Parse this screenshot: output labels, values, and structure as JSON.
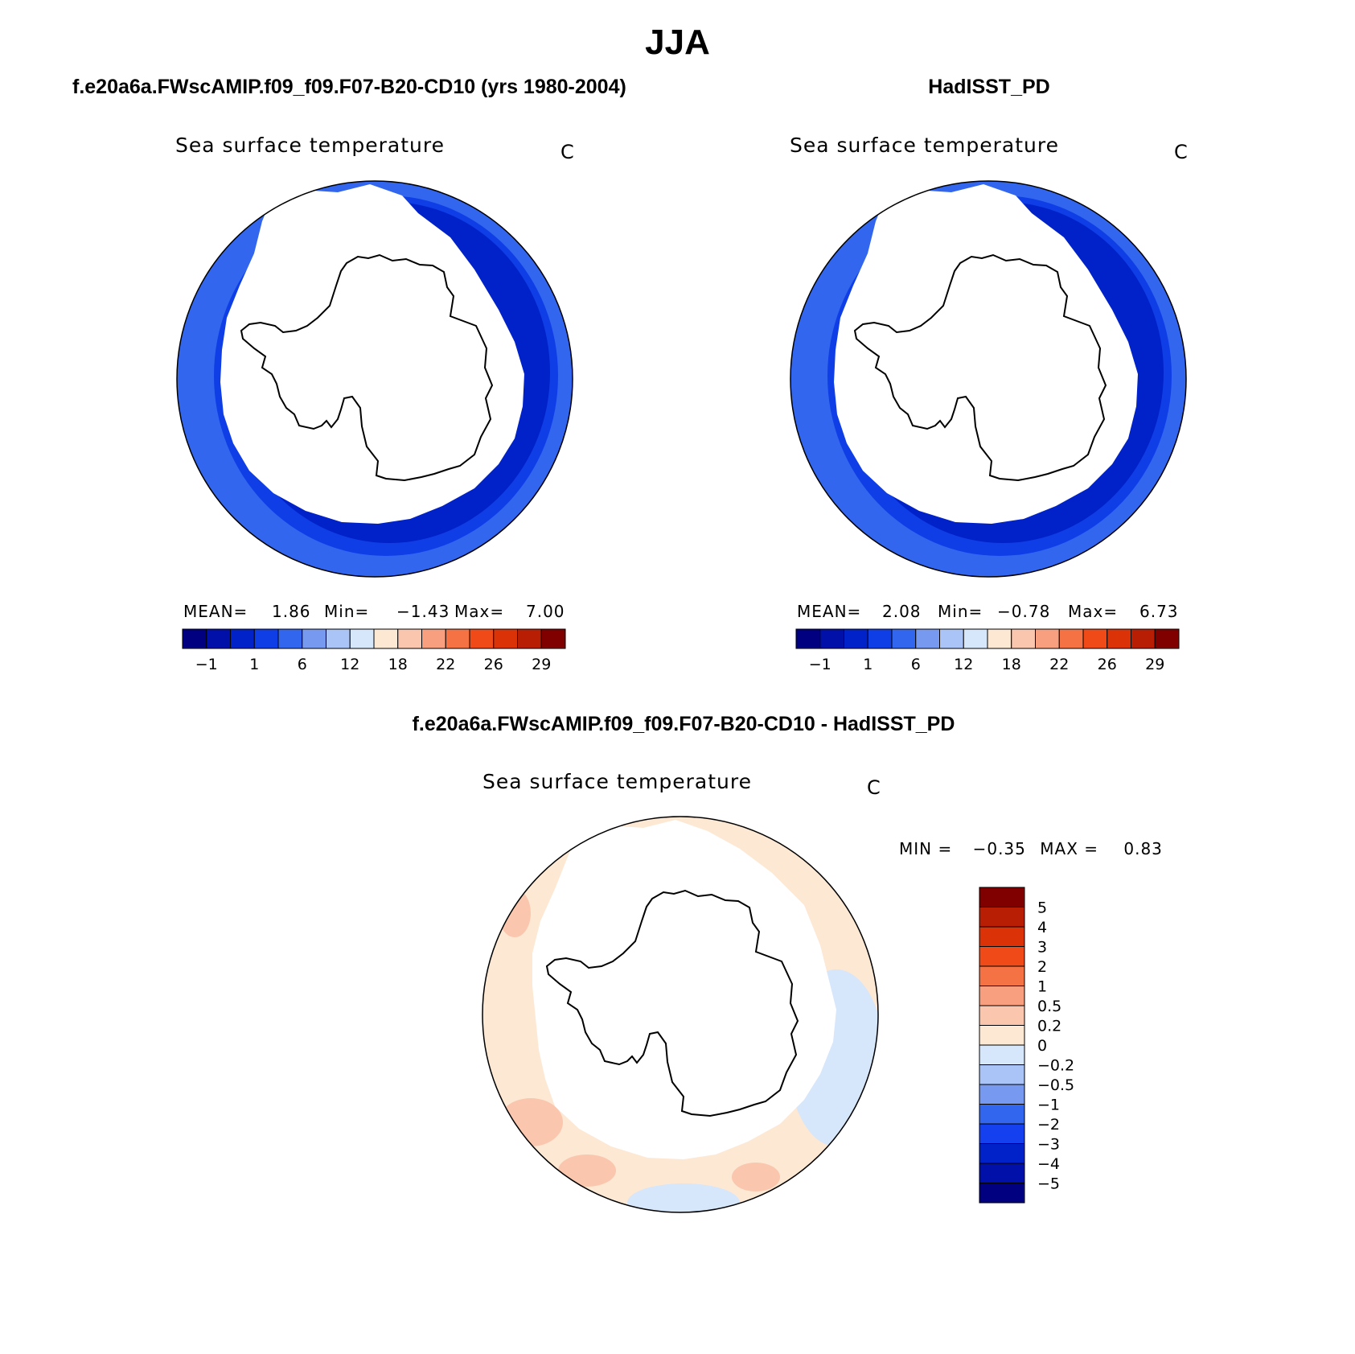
{
  "title": "JJA",
  "panels": [
    {
      "header": "f.e20a6a.FWscAMIP.f09_f09.F07-B20-CD10 (yrs 1980-2004)",
      "variable": "Sea surface temperature",
      "units": "C",
      "stats": {
        "mean_label": "MEAN=",
        "mean": "1.86",
        "min_label": "Min=",
        "min": "−1.43",
        "max_label": "Max=",
        "max": "7.00"
      },
      "colorbar": {
        "colors": [
          "#000080",
          "#0010a8",
          "#0022c8",
          "#0f3ee6",
          "#3366ee",
          "#7799f0",
          "#aac4f7",
          "#d6e6fb",
          "#fde8d4",
          "#fac6ae",
          "#f79f7e",
          "#f57245",
          "#f04a18",
          "#dc3207",
          "#b81e04",
          "#800000"
        ],
        "labels": [
          "−1",
          "1",
          "6",
          "12",
          "18",
          "22",
          "26",
          "29"
        ]
      }
    },
    {
      "header": "HadISST_PD",
      "variable": "Sea surface temperature",
      "units": "C",
      "stats": {
        "mean_label": "MEAN=",
        "mean": "2.08",
        "min_label": "Min=",
        "min": "−0.78",
        "max_label": "Max=",
        "max": "6.73"
      },
      "colorbar": {
        "colors": [
          "#000080",
          "#0010a8",
          "#0022c8",
          "#0f3ee6",
          "#3366ee",
          "#7799f0",
          "#aac4f7",
          "#d6e6fb",
          "#fde8d4",
          "#fac6ae",
          "#f79f7e",
          "#f57245",
          "#f04a18",
          "#dc3207",
          "#b81e04",
          "#800000"
        ],
        "labels": [
          "−1",
          "1",
          "6",
          "12",
          "18",
          "22",
          "26",
          "29"
        ]
      }
    }
  ],
  "difference": {
    "header": "f.e20a6a.FWscAMIP.f09_f09.F07-B20-CD10 - HadISST_PD",
    "variable": "Sea surface temperature",
    "units": "C",
    "stats": {
      "min_label": "MIN =",
      "min": "−0.35",
      "max_label": "MAX =",
      "max": "0.83"
    },
    "colorbar": {
      "colors_top_to_bottom": [
        "#800000",
        "#b81e04",
        "#dc3207",
        "#f04a18",
        "#f57245",
        "#f79f7e",
        "#fac6ae",
        "#fde8d4",
        "#d6e6fb",
        "#aac4f7",
        "#7799f0",
        "#3366ee",
        "#1540f0",
        "#0022c8",
        "#0010a8",
        "#000080"
      ],
      "labels_top_to_bottom": [
        "5",
        "4",
        "3",
        "2",
        "1",
        "0.5",
        "0.2",
        "0",
        "−0.2",
        "−0.5",
        "−1",
        "−2",
        "−3",
        "−4",
        "−5"
      ]
    }
  }
}
